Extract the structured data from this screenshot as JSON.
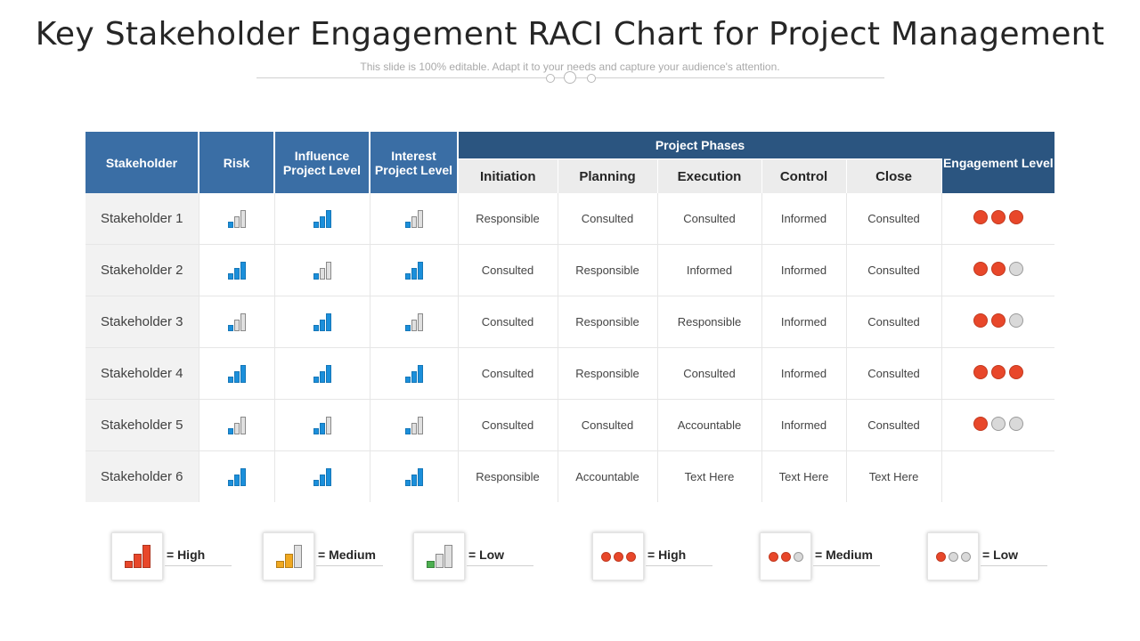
{
  "title": "Key Stakeholder Engagement RACI Chart for Project Management",
  "subtitle": "This slide is 100% editable. Adapt it to your needs and capture your audience's attention.",
  "table": {
    "headers": {
      "stakeholder": "Stakeholder",
      "risk": "Risk",
      "influence": "Influence Project Level",
      "interest": "Interest Project Level",
      "project_phases": "Project Phases",
      "engagement": "Engagement Level",
      "phases": [
        "Initiation",
        "Planning",
        "Execution",
        "Control",
        "Close"
      ]
    },
    "rows": [
      {
        "name": "Stakeholder 1",
        "risk": "low",
        "influence": "high",
        "interest": "low",
        "phases": [
          "Responsible",
          "Consulted",
          "Consulted",
          "Informed",
          "Consulted"
        ],
        "engagement": 3
      },
      {
        "name": "Stakeholder 2",
        "risk": "high",
        "influence": "low",
        "interest": "high",
        "phases": [
          "Consulted",
          "Responsible",
          "Informed",
          "Informed",
          "Consulted"
        ],
        "engagement": 2
      },
      {
        "name": "Stakeholder 3",
        "risk": "low",
        "influence": "high",
        "interest": "low",
        "phases": [
          "Consulted",
          "Responsible",
          "Responsible",
          "Informed",
          "Consulted"
        ],
        "engagement": 2
      },
      {
        "name": "Stakeholder 4",
        "risk": "high",
        "influence": "high",
        "interest": "high",
        "phases": [
          "Consulted",
          "Responsible",
          "Consulted",
          "Informed",
          "Consulted"
        ],
        "engagement": 3
      },
      {
        "name": "Stakeholder 5",
        "risk": "low",
        "influence": "medium",
        "interest": "low",
        "phases": [
          "Consulted",
          "Consulted",
          "Accountable",
          "Informed",
          "Consulted"
        ],
        "engagement": 1
      },
      {
        "name": "Stakeholder 6",
        "risk": "high",
        "influence": "high",
        "interest": "high",
        "phases": [
          "Responsible",
          "Accountable",
          "Text Here",
          "Text Here",
          "Text Here"
        ],
        "engagement": 0
      }
    ]
  },
  "legend": [
    {
      "kind": "bars",
      "level": "high",
      "label": "= High",
      "color": "#e8472a"
    },
    {
      "kind": "bars",
      "level": "medium",
      "label": "= Medium",
      "color": "#f0a820"
    },
    {
      "kind": "bars",
      "level": "low",
      "label": "= Low",
      "color": "#4caf50"
    },
    {
      "kind": "dots",
      "level": 3,
      "label": "= High"
    },
    {
      "kind": "dots",
      "level": 2,
      "label": "= Medium"
    },
    {
      "kind": "dots",
      "level": 1,
      "label": "= Low"
    }
  ],
  "colors": {
    "header_blue": "#3a6ea5",
    "header_dark": "#2b5580",
    "bar_active": "#1b8fdb",
    "dot_active": "#e8472a",
    "inactive": "#d9d9d9"
  }
}
